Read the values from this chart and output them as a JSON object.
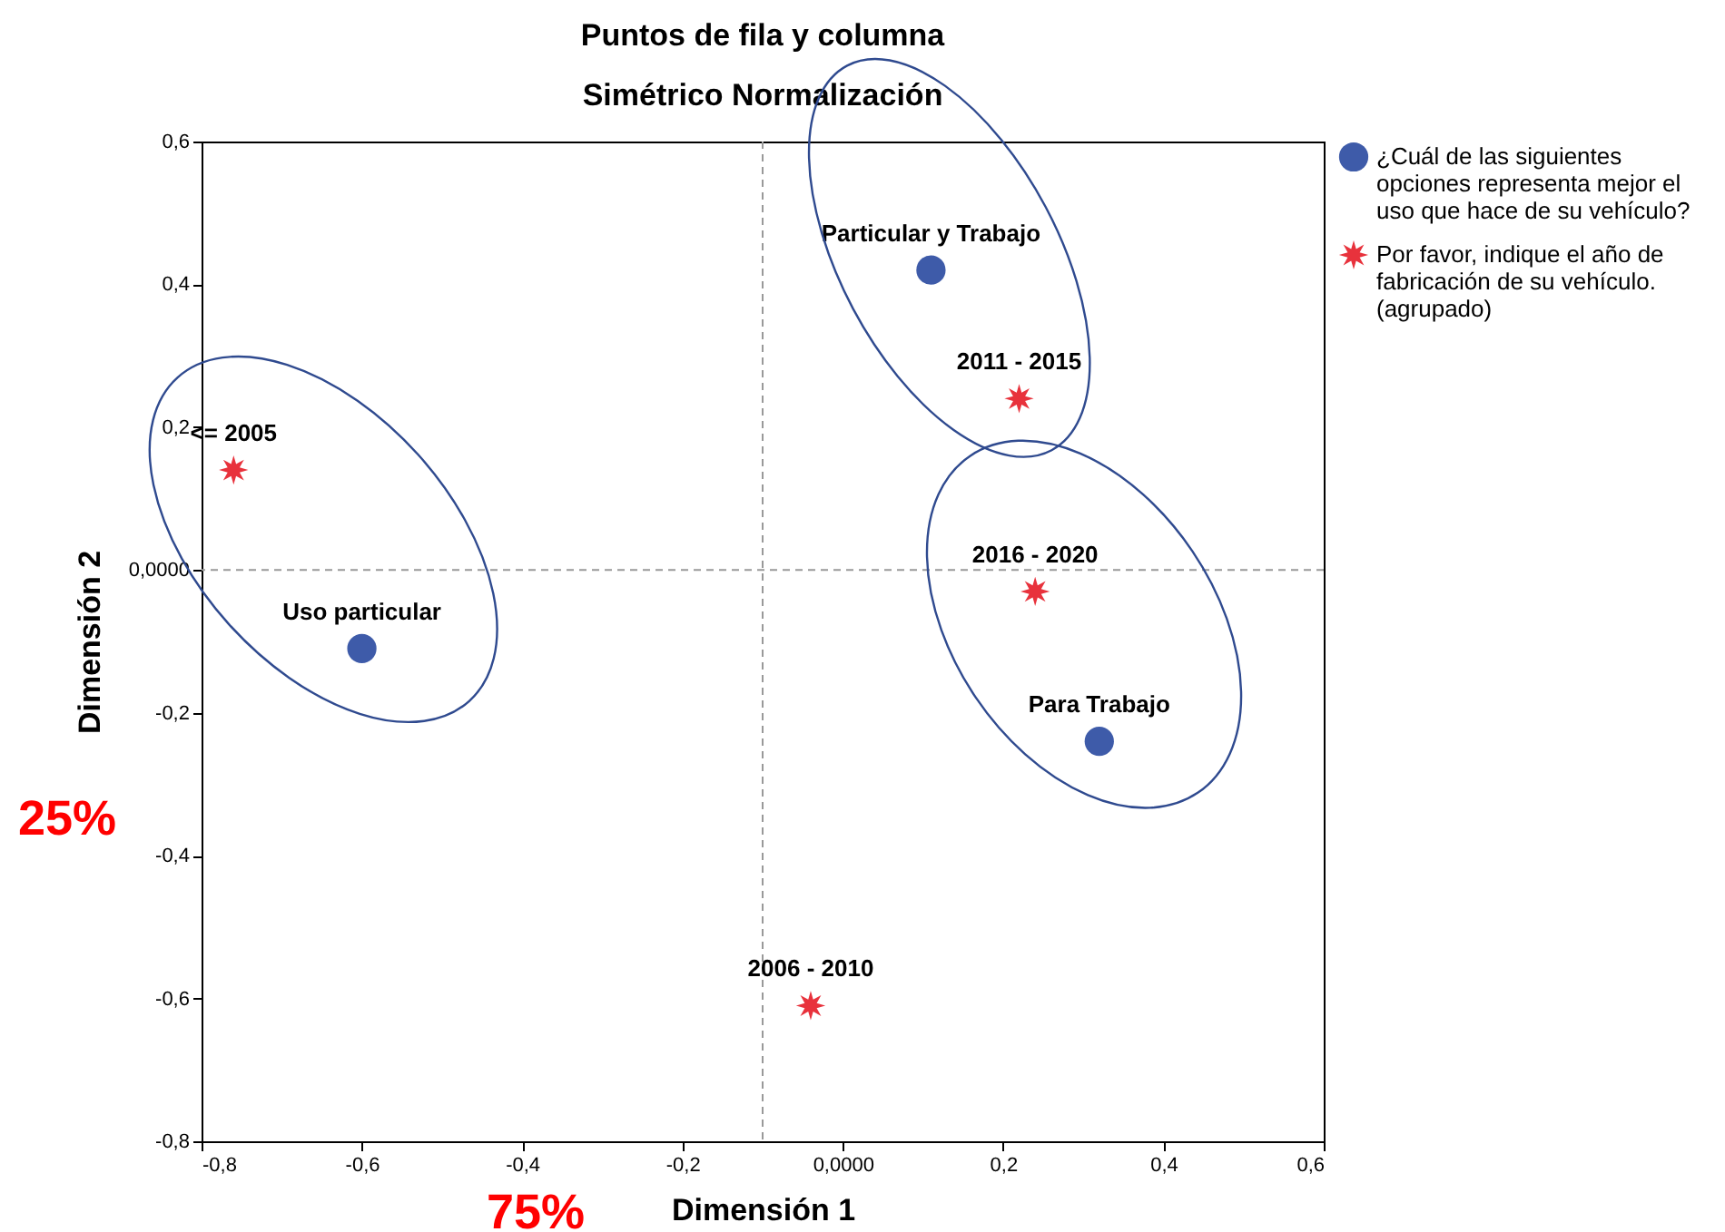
{
  "chart_data": {
    "type": "scatter",
    "title": "Puntos de fila y columna",
    "subtitle": "Simétrico Normalización",
    "xlabel": "Dimensión 1",
    "ylabel": "Dimensión 2",
    "series": [
      {
        "name": "¿Cuál de las siguientes opciones representa mejor el uso que hace de su vehículo?",
        "color": "#3e5ba9",
        "marker": "circle",
        "x": [
          0.11,
          -0.6,
          0.32
        ],
        "values": [
          0.42,
          -0.11,
          -0.24
        ]
      },
      {
        "name": "Por favor, indique el año de fabricación de su vehículo. (agrupado)",
        "color": "#e8323c",
        "marker": "star",
        "x": [
          -0.76,
          0.22,
          0.24,
          -0.04
        ],
        "values": [
          0.14,
          0.24,
          -0.03,
          -0.61
        ]
      }
    ],
    "xlim": [
      -0.8,
      0.6
    ],
    "ylim": [
      -0.8,
      0.6
    ],
    "xticks": [
      {
        "value": -0.8,
        "label": "-0,8"
      },
      {
        "value": -0.6,
        "label": "-0,6"
      },
      {
        "value": -0.4,
        "label": "-0,4"
      },
      {
        "value": -0.2,
        "label": "-0,2"
      },
      {
        "value": 0,
        "label": "0,0000"
      },
      {
        "value": 0.2,
        "label": "0,2"
      },
      {
        "value": 0.4,
        "label": "0,4"
      },
      {
        "value": 0.6,
        "label": "0,6"
      }
    ],
    "yticks": [
      {
        "value": -0.8,
        "label": "-0,8"
      },
      {
        "value": -0.6,
        "label": "-0,6"
      },
      {
        "value": -0.4,
        "label": "-0,4"
      },
      {
        "value": -0.2,
        "label": "-0,2"
      },
      {
        "value": 0,
        "label": "0,0000"
      },
      {
        "value": 0.2,
        "label": "0,2"
      },
      {
        "value": 0.4,
        "label": "0,4"
      },
      {
        "value": 0.6,
        "label": "0,6"
      }
    ],
    "ref_lines": [
      {
        "axis": "x",
        "value": -0.1,
        "line_style": "dashed",
        "color": "#999999"
      },
      {
        "axis": "y",
        "value": 0,
        "line_style": "dashed",
        "color": "#999999"
      }
    ],
    "annotations": [
      {
        "text": "Particular y Trabajo",
        "x": 0.11,
        "y": 0.42
      },
      {
        "text": "Uso particular",
        "x": -0.6,
        "y": -0.11
      },
      {
        "text": "Para Trabajo",
        "x": 0.32,
        "y": -0.24
      },
      {
        "text": "<= 2005",
        "x": -0.76,
        "y": 0.14
      },
      {
        "text": "2011 - 2015",
        "x": 0.22,
        "y": 0.24
      },
      {
        "text": "2016 - 2020",
        "x": 0.24,
        "y": -0.03
      },
      {
        "text": "2006 - 2010",
        "x": -0.04,
        "y": -0.61
      },
      "25%",
      "75%"
    ],
    "grid": false,
    "legend": "top right"
  }
}
